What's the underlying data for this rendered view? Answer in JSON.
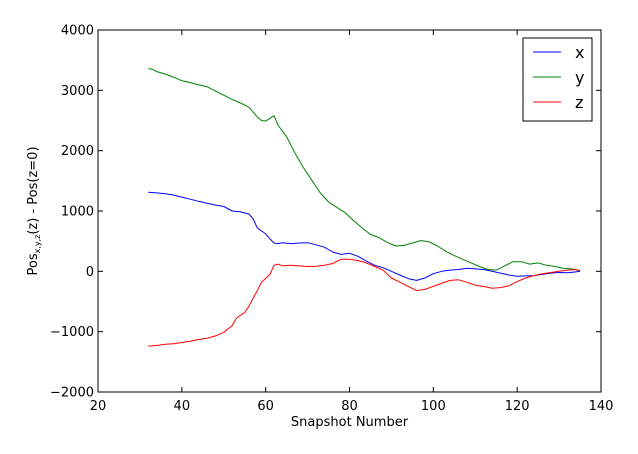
{
  "chart_data": {
    "type": "line",
    "title": "",
    "xlabel": "Snapshot Number",
    "ylabel": {
      "prefix": "Pos",
      "subscript": "x,y,z",
      "suffix": "(z) - Pos(z=0)"
    },
    "xlim": [
      20,
      140
    ],
    "ylim": [
      -2000,
      4000
    ],
    "xticks": [
      20,
      40,
      60,
      80,
      100,
      120,
      140
    ],
    "xtick_labels": [
      "20",
      "40",
      "60",
      "80",
      "100",
      "120",
      "140"
    ],
    "yticks": [
      -2000,
      -1000,
      0,
      1000,
      2000,
      3000,
      4000
    ],
    "ytick_labels": [
      "−2000",
      "−1000",
      "0",
      "1000",
      "2000",
      "3000",
      "4000"
    ],
    "grid": false,
    "legend_position": "top-right",
    "series": [
      {
        "name": "x",
        "color": "#0000ff",
        "points": [
          [
            32,
            1310
          ],
          [
            34,
            1300
          ],
          [
            36,
            1285
          ],
          [
            38,
            1265
          ],
          [
            40,
            1230
          ],
          [
            42,
            1195
          ],
          [
            44,
            1160
          ],
          [
            46,
            1130
          ],
          [
            48,
            1100
          ],
          [
            50,
            1075
          ],
          [
            52,
            1000
          ],
          [
            54,
            985
          ],
          [
            56,
            950
          ],
          [
            57,
            870
          ],
          [
            58,
            720
          ],
          [
            60,
            620
          ],
          [
            61,
            540
          ],
          [
            62,
            470
          ],
          [
            63,
            460
          ],
          [
            64,
            475
          ],
          [
            66,
            460
          ],
          [
            68,
            470
          ],
          [
            70,
            475
          ],
          [
            72,
            440
          ],
          [
            74,
            400
          ],
          [
            76,
            320
          ],
          [
            78,
            280
          ],
          [
            80,
            300
          ],
          [
            82,
            250
          ],
          [
            84,
            170
          ],
          [
            86,
            100
          ],
          [
            88,
            60
          ],
          [
            90,
            0
          ],
          [
            92,
            -60
          ],
          [
            94,
            -120
          ],
          [
            96,
            -150
          ],
          [
            98,
            -110
          ],
          [
            100,
            -40
          ],
          [
            102,
            0
          ],
          [
            104,
            20
          ],
          [
            106,
            30
          ],
          [
            108,
            50
          ],
          [
            110,
            40
          ],
          [
            112,
            30
          ],
          [
            114,
            0
          ],
          [
            116,
            -30
          ],
          [
            118,
            -60
          ],
          [
            120,
            -80
          ],
          [
            122,
            -75
          ],
          [
            124,
            -70
          ],
          [
            126,
            -50
          ],
          [
            128,
            -30
          ],
          [
            130,
            -20
          ],
          [
            132,
            -25
          ],
          [
            134,
            -10
          ],
          [
            135,
            0
          ]
        ]
      },
      {
        "name": "y",
        "color": "#008000",
        "points": [
          [
            32,
            3360
          ],
          [
            33,
            3350
          ],
          [
            34,
            3310
          ],
          [
            36,
            3270
          ],
          [
            38,
            3220
          ],
          [
            40,
            3160
          ],
          [
            42,
            3130
          ],
          [
            44,
            3090
          ],
          [
            46,
            3060
          ],
          [
            48,
            2990
          ],
          [
            50,
            2920
          ],
          [
            52,
            2850
          ],
          [
            54,
            2790
          ],
          [
            56,
            2720
          ],
          [
            58,
            2560
          ],
          [
            59,
            2500
          ],
          [
            60,
            2490
          ],
          [
            62,
            2580
          ],
          [
            63,
            2420
          ],
          [
            65,
            2230
          ],
          [
            67,
            1960
          ],
          [
            69,
            1720
          ],
          [
            71,
            1510
          ],
          [
            73,
            1300
          ],
          [
            75,
            1150
          ],
          [
            77,
            1060
          ],
          [
            79,
            970
          ],
          [
            81,
            840
          ],
          [
            83,
            720
          ],
          [
            85,
            610
          ],
          [
            87,
            560
          ],
          [
            89,
            480
          ],
          [
            91,
            420
          ],
          [
            93,
            430
          ],
          [
            95,
            470
          ],
          [
            97,
            510
          ],
          [
            99,
            490
          ],
          [
            101,
            420
          ],
          [
            103,
            330
          ],
          [
            105,
            260
          ],
          [
            107,
            200
          ],
          [
            109,
            140
          ],
          [
            111,
            80
          ],
          [
            113,
            30
          ],
          [
            115,
            20
          ],
          [
            117,
            90
          ],
          [
            119,
            160
          ],
          [
            121,
            160
          ],
          [
            123,
            120
          ],
          [
            125,
            140
          ],
          [
            127,
            100
          ],
          [
            129,
            80
          ],
          [
            131,
            50
          ],
          [
            133,
            40
          ],
          [
            135,
            10
          ]
        ]
      },
      {
        "name": "z",
        "color": "#ff0000",
        "points": [
          [
            32,
            -1240
          ],
          [
            34,
            -1230
          ],
          [
            36,
            -1210
          ],
          [
            38,
            -1200
          ],
          [
            40,
            -1180
          ],
          [
            42,
            -1160
          ],
          [
            44,
            -1130
          ],
          [
            46,
            -1110
          ],
          [
            48,
            -1070
          ],
          [
            50,
            -1010
          ],
          [
            52,
            -900
          ],
          [
            53,
            -780
          ],
          [
            55,
            -680
          ],
          [
            56,
            -580
          ],
          [
            58,
            -320
          ],
          [
            59,
            -180
          ],
          [
            61,
            -50
          ],
          [
            62,
            100
          ],
          [
            63,
            120
          ],
          [
            64,
            90
          ],
          [
            66,
            100
          ],
          [
            68,
            90
          ],
          [
            70,
            80
          ],
          [
            72,
            85
          ],
          [
            74,
            100
          ],
          [
            76,
            130
          ],
          [
            78,
            200
          ],
          [
            80,
            200
          ],
          [
            82,
            180
          ],
          [
            84,
            140
          ],
          [
            86,
            80
          ],
          [
            88,
            20
          ],
          [
            90,
            -110
          ],
          [
            92,
            -180
          ],
          [
            94,
            -250
          ],
          [
            96,
            -320
          ],
          [
            98,
            -300
          ],
          [
            100,
            -250
          ],
          [
            102,
            -200
          ],
          [
            104,
            -150
          ],
          [
            106,
            -140
          ],
          [
            108,
            -180
          ],
          [
            110,
            -230
          ],
          [
            112,
            -250
          ],
          [
            114,
            -280
          ],
          [
            116,
            -270
          ],
          [
            118,
            -240
          ],
          [
            120,
            -170
          ],
          [
            122,
            -110
          ],
          [
            124,
            -70
          ],
          [
            126,
            -40
          ],
          [
            128,
            -20
          ],
          [
            130,
            0
          ],
          [
            132,
            20
          ],
          [
            134,
            30
          ],
          [
            135,
            10
          ]
        ]
      }
    ]
  }
}
